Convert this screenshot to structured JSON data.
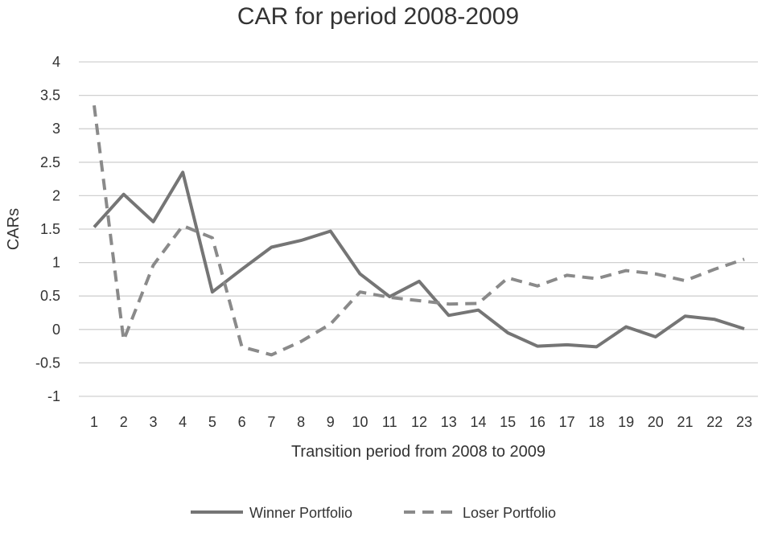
{
  "chart_data": {
    "type": "line",
    "title": "CAR for period 2008-2009",
    "xlabel": "Transition period from 2008 to 2009",
    "ylabel": "CARs",
    "categories": [
      "1",
      "2",
      "3",
      "4",
      "5",
      "6",
      "7",
      "8",
      "9",
      "10",
      "11",
      "12",
      "13",
      "14",
      "15",
      "16",
      "17",
      "18",
      "19",
      "20",
      "21",
      "22",
      "23"
    ],
    "ylim": [
      -1,
      4
    ],
    "yticks": [
      "4",
      "3.5",
      "3",
      "2.5",
      "2",
      "1.5",
      "1",
      "0.5",
      "0",
      "-0.5",
      "-1"
    ],
    "grid": true,
    "legend_position": "bottom",
    "series": [
      {
        "name": "Winner Portfolio",
        "style": "solid",
        "color": "#757575",
        "values": [
          1.53,
          2.02,
          1.61,
          2.35,
          0.56,
          0.9,
          1.23,
          1.33,
          1.47,
          0.83,
          0.49,
          0.72,
          0.21,
          0.29,
          -0.05,
          -0.25,
          -0.23,
          -0.26,
          0.04,
          -0.11,
          0.2,
          0.15,
          0.01
        ]
      },
      {
        "name": "Loser Portfolio",
        "style": "dashed",
        "color": "#8a8a8a",
        "values": [
          3.35,
          -0.16,
          0.96,
          1.55,
          1.37,
          -0.26,
          -0.38,
          -0.18,
          0.08,
          0.56,
          0.48,
          0.43,
          0.38,
          0.39,
          0.77,
          0.65,
          0.81,
          0.76,
          0.88,
          0.83,
          0.73,
          0.9,
          1.05
        ]
      }
    ]
  }
}
